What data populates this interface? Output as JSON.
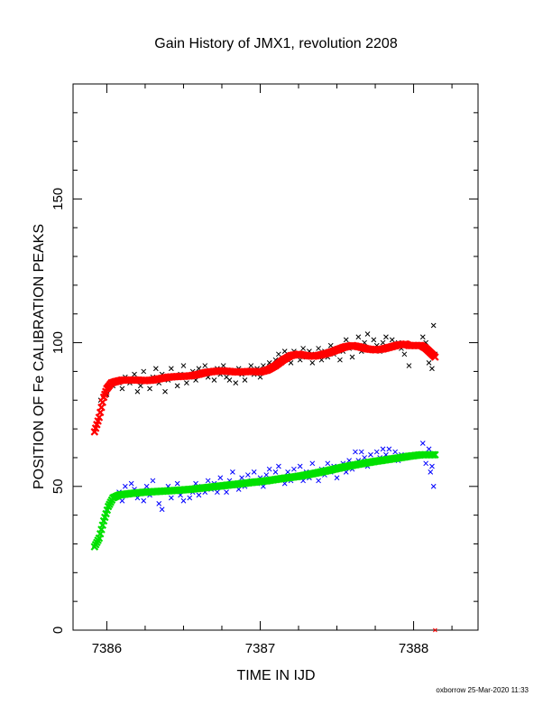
{
  "chart_data": {
    "type": "scatter",
    "title": "Gain History of JMX1, revolution 2208",
    "xlabel": "TIME IN IJD",
    "ylabel": "POSITION OF Fe CALIBRATION PEAKS",
    "xlim": [
      7385.78,
      7388.42
    ],
    "ylim": [
      0,
      190
    ],
    "x_ticks": [
      7386,
      7387,
      7388
    ],
    "y_ticks": [
      0,
      50,
      100,
      150
    ],
    "grid": false,
    "legend": "none",
    "footer": "oxborrow 25-Mar-2020 11:33",
    "series": [
      {
        "marker": "x",
        "color": "#000000",
        "points": [
          [
            7385.96,
            80
          ],
          [
            7386.0,
            82
          ],
          [
            7386.04,
            85
          ],
          [
            7386.08,
            86
          ],
          [
            7386.1,
            84
          ],
          [
            7386.12,
            88
          ],
          [
            7386.15,
            86
          ],
          [
            7386.18,
            89
          ],
          [
            7386.2,
            83
          ],
          [
            7386.22,
            85
          ],
          [
            7386.24,
            90
          ],
          [
            7386.26,
            87
          ],
          [
            7386.28,
            84
          ],
          [
            7386.3,
            88
          ],
          [
            7386.32,
            91
          ],
          [
            7386.34,
            86
          ],
          [
            7386.36,
            89
          ],
          [
            7386.38,
            83
          ],
          [
            7386.4,
            87
          ],
          [
            7386.42,
            91
          ],
          [
            7386.44,
            88
          ],
          [
            7386.46,
            85
          ],
          [
            7386.48,
            89
          ],
          [
            7386.5,
            92
          ],
          [
            7386.52,
            86
          ],
          [
            7386.54,
            88
          ],
          [
            7386.56,
            90
          ],
          [
            7386.58,
            87
          ],
          [
            7386.6,
            91
          ],
          [
            7386.62,
            89
          ],
          [
            7386.64,
            92
          ],
          [
            7386.66,
            88
          ],
          [
            7386.68,
            90
          ],
          [
            7386.7,
            87
          ],
          [
            7386.72,
            91
          ],
          [
            7386.74,
            89
          ],
          [
            7386.76,
            92
          ],
          [
            7386.78,
            88
          ],
          [
            7386.8,
            87
          ],
          [
            7386.82,
            90
          ],
          [
            7386.84,
            86
          ],
          [
            7386.86,
            91
          ],
          [
            7386.88,
            89
          ],
          [
            7386.9,
            87
          ],
          [
            7386.92,
            90
          ],
          [
            7386.94,
            92
          ],
          [
            7386.96,
            89
          ],
          [
            7386.98,
            91
          ],
          [
            7387.0,
            88
          ],
          [
            7387.02,
            92
          ],
          [
            7387.04,
            90
          ],
          [
            7387.06,
            93
          ],
          [
            7387.08,
            91
          ],
          [
            7387.1,
            94
          ],
          [
            7387.12,
            96
          ],
          [
            7387.14,
            93
          ],
          [
            7387.16,
            97
          ],
          [
            7387.18,
            95
          ],
          [
            7387.2,
            93
          ],
          [
            7387.22,
            97
          ],
          [
            7387.24,
            96
          ],
          [
            7387.26,
            94
          ],
          [
            7387.28,
            98
          ],
          [
            7387.3,
            95
          ],
          [
            7387.32,
            97
          ],
          [
            7387.34,
            93
          ],
          [
            7387.36,
            96
          ],
          [
            7387.38,
            98
          ],
          [
            7387.4,
            94
          ],
          [
            7387.42,
            97
          ],
          [
            7387.44,
            95
          ],
          [
            7387.46,
            99
          ],
          [
            7387.48,
            96
          ],
          [
            7387.5,
            98
          ],
          [
            7387.52,
            94
          ],
          [
            7387.54,
            97
          ],
          [
            7387.56,
            101
          ],
          [
            7387.58,
            98
          ],
          [
            7387.6,
            95
          ],
          [
            7387.62,
            99
          ],
          [
            7387.64,
            102
          ],
          [
            7387.66,
            97
          ],
          [
            7387.68,
            100
          ],
          [
            7387.7,
            103
          ],
          [
            7387.72,
            98
          ],
          [
            7387.74,
            101
          ],
          [
            7387.76,
            99
          ],
          [
            7387.78,
            97
          ],
          [
            7387.8,
            100
          ],
          [
            7387.82,
            102
          ],
          [
            7387.84,
            98
          ],
          [
            7387.86,
            101
          ],
          [
            7387.88,
            99
          ],
          [
            7387.9,
            100
          ],
          [
            7387.92,
            98
          ],
          [
            7387.94,
            96
          ],
          [
            7387.97,
            92
          ],
          [
            7388.06,
            102
          ],
          [
            7388.08,
            100
          ],
          [
            7388.1,
            93
          ],
          [
            7388.12,
            91
          ],
          [
            7388.13,
            106
          ],
          [
            7388.14,
            96
          ]
        ]
      },
      {
        "marker": "x",
        "color": "#0000ff",
        "points": [
          [
            7386.0,
            42
          ],
          [
            7386.04,
            46
          ],
          [
            7386.08,
            48
          ],
          [
            7386.1,
            45
          ],
          [
            7386.12,
            50
          ],
          [
            7386.14,
            47
          ],
          [
            7386.16,
            51
          ],
          [
            7386.18,
            49
          ],
          [
            7386.2,
            46
          ],
          [
            7386.22,
            48
          ],
          [
            7386.24,
            45
          ],
          [
            7386.26,
            50
          ],
          [
            7386.28,
            47
          ],
          [
            7386.3,
            52
          ],
          [
            7386.32,
            48
          ],
          [
            7386.34,
            44
          ],
          [
            7386.36,
            42
          ],
          [
            7386.38,
            48
          ],
          [
            7386.4,
            50
          ],
          [
            7386.42,
            46
          ],
          [
            7386.44,
            49
          ],
          [
            7386.46,
            51
          ],
          [
            7386.48,
            47
          ],
          [
            7386.5,
            45
          ],
          [
            7386.52,
            49
          ],
          [
            7386.54,
            46
          ],
          [
            7386.56,
            48
          ],
          [
            7386.58,
            51
          ],
          [
            7386.6,
            47
          ],
          [
            7386.62,
            50
          ],
          [
            7386.64,
            48
          ],
          [
            7386.66,
            52
          ],
          [
            7386.68,
            49
          ],
          [
            7386.7,
            51
          ],
          [
            7386.72,
            48
          ],
          [
            7386.74,
            53
          ],
          [
            7386.76,
            50
          ],
          [
            7386.78,
            48
          ],
          [
            7386.8,
            52
          ],
          [
            7386.82,
            55
          ],
          [
            7386.84,
            51
          ],
          [
            7386.86,
            49
          ],
          [
            7386.88,
            53
          ],
          [
            7386.9,
            50
          ],
          [
            7386.92,
            54
          ],
          [
            7386.94,
            52
          ],
          [
            7386.96,
            55
          ],
          [
            7386.98,
            51
          ],
          [
            7387.0,
            53
          ],
          [
            7387.02,
            50
          ],
          [
            7387.04,
            54
          ],
          [
            7387.06,
            56
          ],
          [
            7387.08,
            52
          ],
          [
            7387.1,
            55
          ],
          [
            7387.12,
            57
          ],
          [
            7387.14,
            53
          ],
          [
            7387.16,
            51
          ],
          [
            7387.18,
            55
          ],
          [
            7387.2,
            52
          ],
          [
            7387.22,
            56
          ],
          [
            7387.24,
            54
          ],
          [
            7387.26,
            57
          ],
          [
            7387.28,
            52
          ],
          [
            7387.3,
            55
          ],
          [
            7387.32,
            53
          ],
          [
            7387.34,
            58
          ],
          [
            7387.36,
            55
          ],
          [
            7387.38,
            52
          ],
          [
            7387.4,
            56
          ],
          [
            7387.42,
            54
          ],
          [
            7387.44,
            58
          ],
          [
            7387.46,
            55
          ],
          [
            7387.48,
            57
          ],
          [
            7387.5,
            53
          ],
          [
            7387.52,
            56
          ],
          [
            7387.54,
            58
          ],
          [
            7387.56,
            55
          ],
          [
            7387.58,
            59
          ],
          [
            7387.6,
            56
          ],
          [
            7387.62,
            62
          ],
          [
            7387.64,
            59
          ],
          [
            7387.66,
            62
          ],
          [
            7387.68,
            60
          ],
          [
            7387.7,
            57
          ],
          [
            7387.72,
            61
          ],
          [
            7387.74,
            59
          ],
          [
            7387.76,
            62
          ],
          [
            7387.78,
            60
          ],
          [
            7387.8,
            63
          ],
          [
            7387.82,
            61
          ],
          [
            7387.84,
            63
          ],
          [
            7387.86,
            60
          ],
          [
            7387.88,
            62
          ],
          [
            7387.9,
            59
          ],
          [
            7387.92,
            61
          ],
          [
            7387.94,
            60
          ],
          [
            7388.06,
            65
          ],
          [
            7388.08,
            58
          ],
          [
            7388.1,
            63
          ],
          [
            7388.11,
            55
          ],
          [
            7388.12,
            57
          ],
          [
            7388.13,
            50
          ]
        ]
      },
      {
        "marker": "x",
        "color": "#ff0000",
        "curve": [
          [
            7385.92,
            69
          ],
          [
            7385.95,
            74
          ],
          [
            7385.98,
            81
          ],
          [
            7386.0,
            84
          ],
          [
            7386.03,
            86
          ],
          [
            7386.06,
            86.5
          ],
          [
            7386.1,
            87
          ],
          [
            7386.15,
            87
          ],
          [
            7386.2,
            87
          ],
          [
            7386.25,
            86.8
          ],
          [
            7386.3,
            87
          ],
          [
            7386.35,
            87.5
          ],
          [
            7386.4,
            88
          ],
          [
            7386.45,
            88.2
          ],
          [
            7386.5,
            88.3
          ],
          [
            7386.55,
            88.5
          ],
          [
            7386.6,
            89
          ],
          [
            7386.65,
            89.7
          ],
          [
            7386.7,
            90
          ],
          [
            7386.75,
            90.2
          ],
          [
            7386.8,
            90
          ],
          [
            7386.85,
            89.8
          ],
          [
            7386.9,
            89.9
          ],
          [
            7386.95,
            90
          ],
          [
            7387.0,
            89.8
          ],
          [
            7387.05,
            90.5
          ],
          [
            7387.1,
            92
          ],
          [
            7387.15,
            94
          ],
          [
            7387.2,
            95.5
          ],
          [
            7387.25,
            96
          ],
          [
            7387.3,
            95.5
          ],
          [
            7387.35,
            95.3
          ],
          [
            7387.4,
            95.8
          ],
          [
            7387.45,
            96.5
          ],
          [
            7387.5,
            97.5
          ],
          [
            7387.55,
            98.5
          ],
          [
            7387.6,
            99
          ],
          [
            7387.65,
            98.5
          ],
          [
            7387.7,
            97.8
          ],
          [
            7387.75,
            97.5
          ],
          [
            7387.8,
            97.8
          ],
          [
            7387.85,
            98.5
          ],
          [
            7387.9,
            99.2
          ],
          [
            7387.95,
            99.5
          ],
          [
            7387.97,
            99
          ],
          [
            7388.05,
            99
          ],
          [
            7388.08,
            98
          ],
          [
            7388.11,
            96.5
          ],
          [
            7388.14,
            95
          ]
        ],
        "extra_points": [
          [
            7388.14,
            0
          ]
        ]
      },
      {
        "marker": "x",
        "color": "#00e000",
        "curve": [
          [
            7385.92,
            29
          ],
          [
            7385.95,
            32
          ],
          [
            7385.98,
            38
          ],
          [
            7386.01,
            43
          ],
          [
            7386.04,
            46
          ],
          [
            7386.08,
            47
          ],
          [
            7386.15,
            47.5
          ],
          [
            7386.25,
            48
          ],
          [
            7386.35,
            48.3
          ],
          [
            7386.45,
            48.6
          ],
          [
            7386.55,
            49
          ],
          [
            7386.65,
            49.6
          ],
          [
            7386.75,
            50.2
          ],
          [
            7386.85,
            50.8
          ],
          [
            7386.95,
            51.4
          ],
          [
            7387.05,
            52
          ],
          [
            7387.15,
            52.8
          ],
          [
            7387.25,
            53.5
          ],
          [
            7387.35,
            54.5
          ],
          [
            7387.45,
            55.6
          ],
          [
            7387.55,
            56.8
          ],
          [
            7387.65,
            57.8
          ],
          [
            7387.75,
            58.7
          ],
          [
            7387.85,
            59.5
          ],
          [
            7387.95,
            60.3
          ],
          [
            7387.97,
            60.5
          ],
          [
            7388.05,
            61
          ],
          [
            7388.14,
            61
          ]
        ]
      }
    ]
  }
}
